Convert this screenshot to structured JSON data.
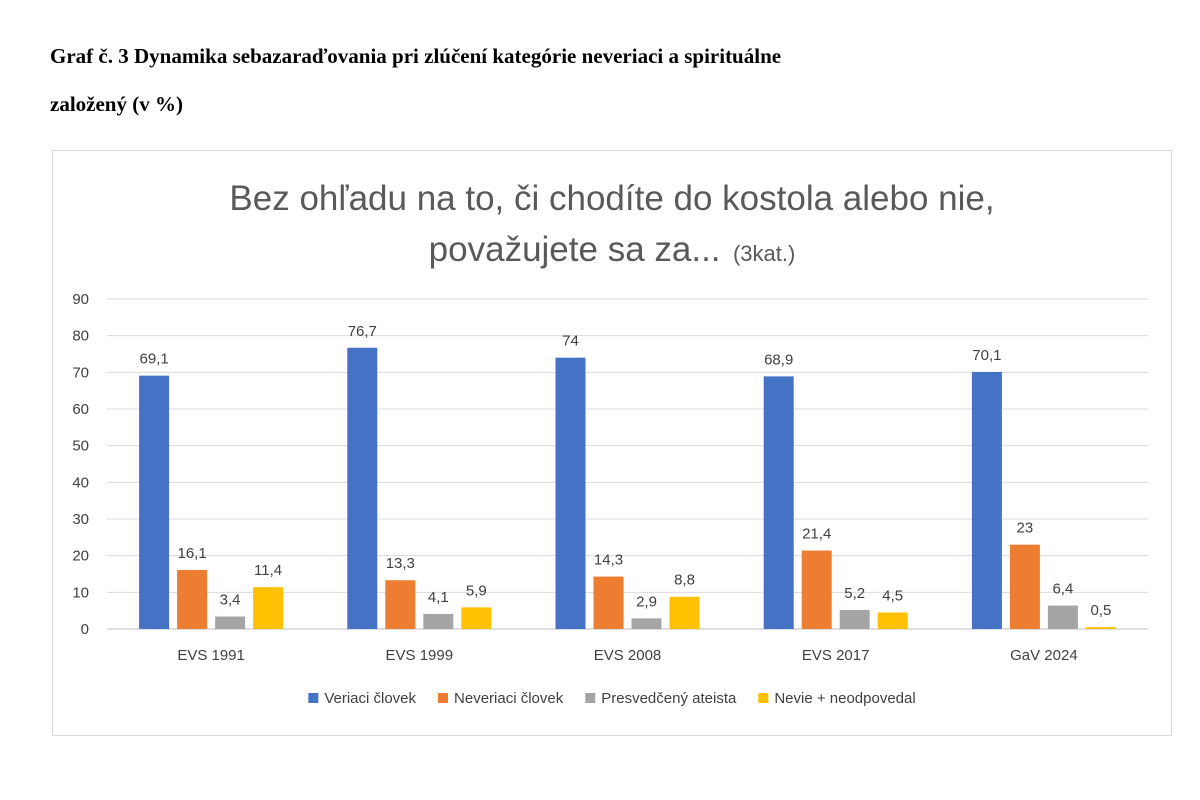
{
  "caption": {
    "line1": "Graf č. 3 Dynamika sebazaraďovania pri zlúčení kategórie neveriaci a spirituálne",
    "line2": "založený (v %)"
  },
  "chart_data": {
    "type": "bar",
    "title": "Bez ohľadu na to, či chodíte do kostola alebo nie,",
    "title_line2": "považujete sa za...",
    "title_suffix": "(3kat.)",
    "xlabel": "",
    "ylabel": "",
    "ylim": [
      0,
      90
    ],
    "yticks": [
      0,
      10,
      20,
      30,
      40,
      50,
      60,
      70,
      80,
      90
    ],
    "grid": true,
    "legend_position": "bottom",
    "categories": [
      "EVS 1991",
      "EVS 1999",
      "EVS 2008",
      "EVS 2017",
      "GaV 2024"
    ],
    "series": [
      {
        "name": "Veriaci človek",
        "color": "#4472C4",
        "values": [
          69.1,
          76.7,
          74,
          68.9,
          70.1
        ],
        "labels": [
          "69,1",
          "76,7",
          "74",
          "68,9",
          "70,1"
        ]
      },
      {
        "name": "Neveriaci človek",
        "color": "#ED7D31",
        "values": [
          16.1,
          13.3,
          14.3,
          21.4,
          23
        ],
        "labels": [
          "16,1",
          "13,3",
          "14,3",
          "21,4",
          "23"
        ]
      },
      {
        "name": "Presvedčený ateista",
        "color": "#A5A5A5",
        "values": [
          3.4,
          4.1,
          2.9,
          5.2,
          6.4
        ],
        "labels": [
          "3,4",
          "4,1",
          "2,9",
          "5,2",
          "6,4"
        ]
      },
      {
        "name": "Nevie + neodpovedal",
        "color": "#FFC000",
        "values": [
          11.4,
          5.9,
          8.8,
          4.5,
          0.5
        ],
        "labels": [
          "11,4",
          "5,9",
          "8,8",
          "4,5",
          "0,5"
        ]
      }
    ]
  }
}
